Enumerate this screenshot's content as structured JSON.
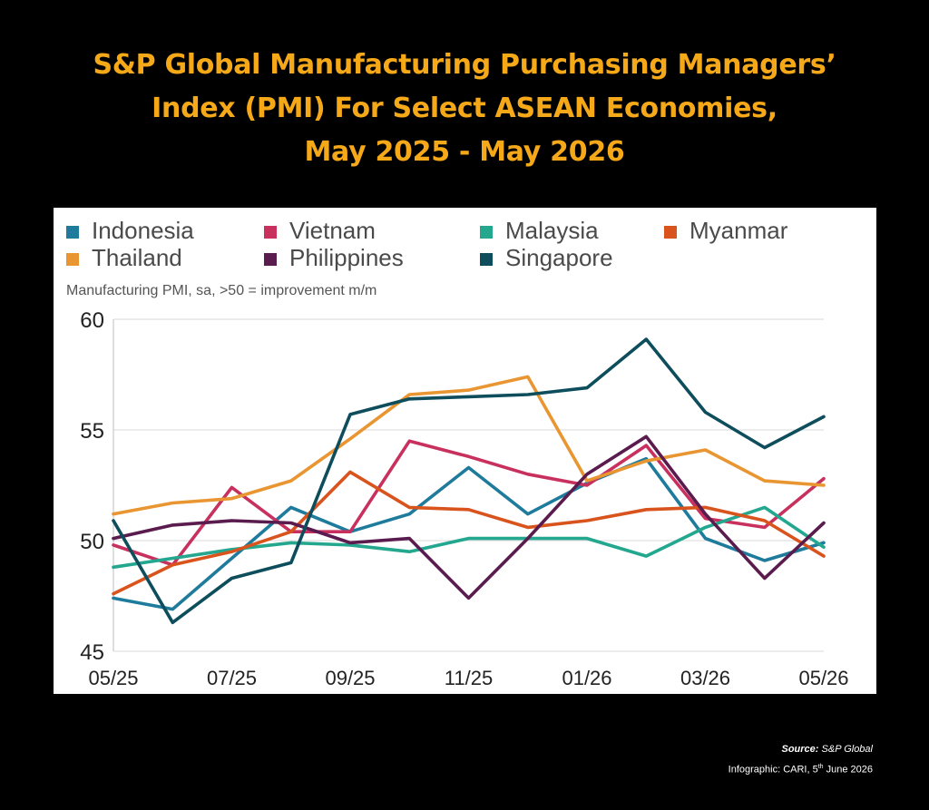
{
  "title_lines": [
    "S&P Global Manufacturing Purchasing Managers’",
    "Index (PMI) For Select ASEAN Economies,",
    "May 2025 - May 2026"
  ],
  "chart_data": {
    "type": "line",
    "subtitle": "Manufacturing PMI, sa, >50 = improvement m/m",
    "x": [
      "05/25",
      "06/25",
      "07/25",
      "08/25",
      "09/25",
      "10/25",
      "11/25",
      "12/25",
      "01/26",
      "02/26",
      "03/26",
      "04/26",
      "05/26"
    ],
    "x_tick_labels": [
      "05/25",
      "07/25",
      "09/25",
      "11/25",
      "01/26",
      "03/26",
      "05/26"
    ],
    "ylim": [
      45,
      60
    ],
    "y_ticks": [
      "45",
      "50",
      "55",
      "60"
    ],
    "grid": true,
    "legend_position": "top",
    "series": [
      {
        "name": "Indonesia",
        "color": "#1E7B9C",
        "values": [
          47.4,
          46.9,
          49.2,
          51.5,
          50.4,
          51.2,
          53.3,
          51.2,
          52.6,
          53.7,
          50.1,
          49.1,
          49.9
        ]
      },
      {
        "name": "Vietnam",
        "color": "#C8305E",
        "values": [
          49.8,
          48.9,
          52.4,
          50.4,
          50.4,
          54.5,
          53.8,
          53.0,
          52.5,
          54.3,
          51.0,
          50.6,
          52.8
        ]
      },
      {
        "name": "Malaysia",
        "color": "#23A78E",
        "values": [
          48.8,
          49.2,
          49.6,
          49.9,
          49.8,
          49.5,
          50.1,
          50.1,
          50.1,
          49.3,
          50.6,
          51.5,
          49.7
        ]
      },
      {
        "name": "Myanmar",
        "color": "#D9541D",
        "values": [
          47.6,
          48.9,
          49.5,
          50.4,
          53.1,
          51.5,
          51.4,
          50.6,
          50.9,
          51.4,
          51.5,
          50.9,
          49.3
        ]
      },
      {
        "name": "Thailand",
        "color": "#E99632",
        "values": [
          51.2,
          51.7,
          51.9,
          52.7,
          54.6,
          56.6,
          56.8,
          57.4,
          52.7,
          53.6,
          54.1,
          52.7,
          52.5
        ]
      },
      {
        "name": "Philippines",
        "color": "#5A1B4E",
        "values": [
          50.1,
          50.7,
          50.9,
          50.8,
          49.9,
          50.1,
          47.4,
          50.1,
          53.0,
          54.7,
          51.2,
          48.3,
          50.8
        ]
      },
      {
        "name": "Singapore",
        "color": "#0D4D5C",
        "values": [
          50.9,
          46.3,
          48.3,
          49.0,
          55.7,
          56.4,
          56.5,
          56.6,
          56.9,
          59.1,
          55.8,
          54.2,
          55.6
        ]
      }
    ]
  },
  "footer": {
    "source_label": "Source:",
    "source_value": "S&P Global",
    "credit_prefix": "Infographic: CARI, 5",
    "credit_sup": "th",
    "credit_suffix": " June 2026"
  }
}
